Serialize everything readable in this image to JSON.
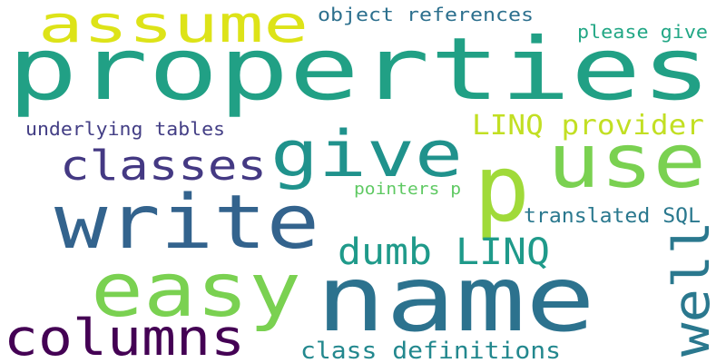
{
  "words": [
    {
      "id": "properties",
      "text": "properties",
      "color": "#21a085"
    },
    {
      "id": "name",
      "text": "name",
      "color": "#2c728e"
    },
    {
      "id": "write",
      "text": "write",
      "color": "#33638d"
    },
    {
      "id": "assume",
      "text": "assume",
      "color": "#dde318"
    },
    {
      "id": "give",
      "text": "give",
      "color": "#20928c"
    },
    {
      "id": "use",
      "text": "use",
      "color": "#7ad151"
    },
    {
      "id": "p",
      "text": "p",
      "color": "#a0da39"
    },
    {
      "id": "easy",
      "text": "easy",
      "color": "#7ad151"
    },
    {
      "id": "columns",
      "text": "columns",
      "color": "#440154"
    },
    {
      "id": "classes",
      "text": "classes",
      "color": "#443983"
    },
    {
      "id": "well",
      "text": "well",
      "color": "#2a788e"
    },
    {
      "id": "dumb-linq",
      "text": "dumb LINQ",
      "color": "#1f9a8a"
    },
    {
      "id": "linq-provider",
      "text": "LINQ provider",
      "color": "#c2df23"
    },
    {
      "id": "class-definitions",
      "text": "class definitions",
      "color": "#23888e"
    },
    {
      "id": "translated-sql",
      "text": "translated SQL",
      "color": "#2a788e"
    },
    {
      "id": "underlying-tables",
      "text": "underlying tables",
      "color": "#433e85"
    },
    {
      "id": "object-references",
      "text": "object references",
      "color": "#2d708e"
    },
    {
      "id": "please-give",
      "text": "please give",
      "color": "#22a785"
    },
    {
      "id": "pointers-p",
      "text": "pointers p",
      "color": "#5ec962"
    }
  ]
}
